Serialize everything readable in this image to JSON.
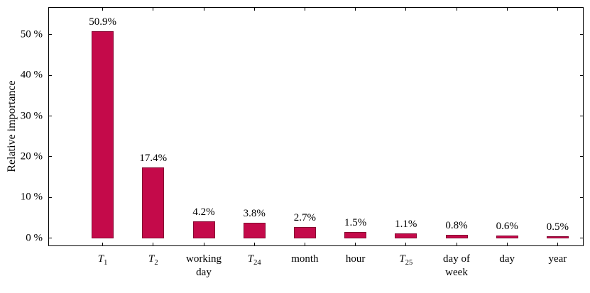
{
  "chart_data": {
    "type": "bar",
    "title": "",
    "ylabel": "Relative importance",
    "xlabel": "",
    "categories": [
      {
        "math": true,
        "base": "T",
        "sub": "1"
      },
      {
        "math": true,
        "base": "T",
        "sub": "2"
      },
      {
        "math": false,
        "lines": [
          "working",
          "day"
        ]
      },
      {
        "math": true,
        "base": "T",
        "sub": "24"
      },
      {
        "math": false,
        "lines": [
          "month"
        ]
      },
      {
        "math": false,
        "lines": [
          "hour"
        ]
      },
      {
        "math": true,
        "base": "T",
        "sub": "25"
      },
      {
        "math": false,
        "lines": [
          "day of",
          "week"
        ]
      },
      {
        "math": false,
        "lines": [
          "day"
        ]
      },
      {
        "math": false,
        "lines": [
          "year"
        ]
      }
    ],
    "values": [
      50.9,
      17.4,
      4.2,
      3.8,
      2.7,
      1.5,
      1.1,
      0.8,
      0.6,
      0.5
    ],
    "value_suffix": "%",
    "yticks": [
      {
        "value": 0,
        "label": "0 %"
      },
      {
        "value": 10,
        "label": "10 %"
      },
      {
        "value": 20,
        "label": "20 %"
      },
      {
        "value": 30,
        "label": "30 %"
      },
      {
        "value": 40,
        "label": "40 %"
      },
      {
        "value": 50,
        "label": "50 %"
      }
    ],
    "ylim": [
      -1.8,
      56.6
    ],
    "grid": false,
    "legend": null,
    "colors": {
      "bar_fill": "#c40a4a",
      "bar_border": "#850732",
      "axis": "#000000",
      "background": "#ffffff"
    }
  }
}
